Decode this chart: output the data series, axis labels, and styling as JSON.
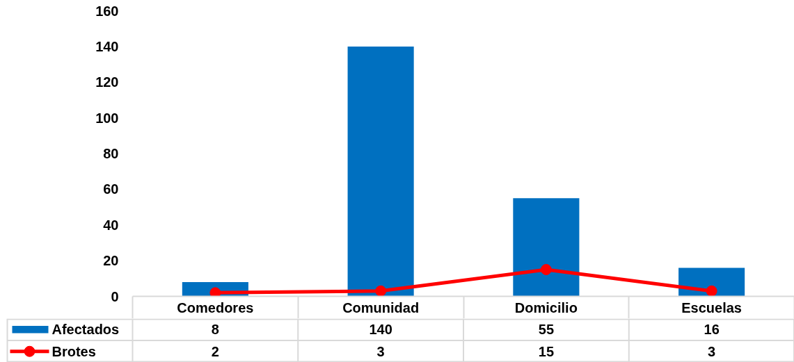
{
  "chart_data": {
    "type": "bar",
    "categories": [
      "Comedores",
      "Comunidad",
      "Domicilio",
      "Escuelas"
    ],
    "series": [
      {
        "name": "Afectados",
        "color": "#0070c0",
        "values": [
          8,
          140,
          55,
          16
        ]
      },
      {
        "name": "Brotes",
        "type": "line",
        "color": "#ff0000",
        "marker": "circle",
        "values": [
          2,
          3,
          15,
          3
        ]
      }
    ],
    "ylim": [
      0,
      160
    ],
    "yticks": [
      0,
      20,
      40,
      60,
      80,
      100,
      120,
      140,
      160
    ],
    "grid": false,
    "legend": "bottom",
    "data_labels": true
  }
}
